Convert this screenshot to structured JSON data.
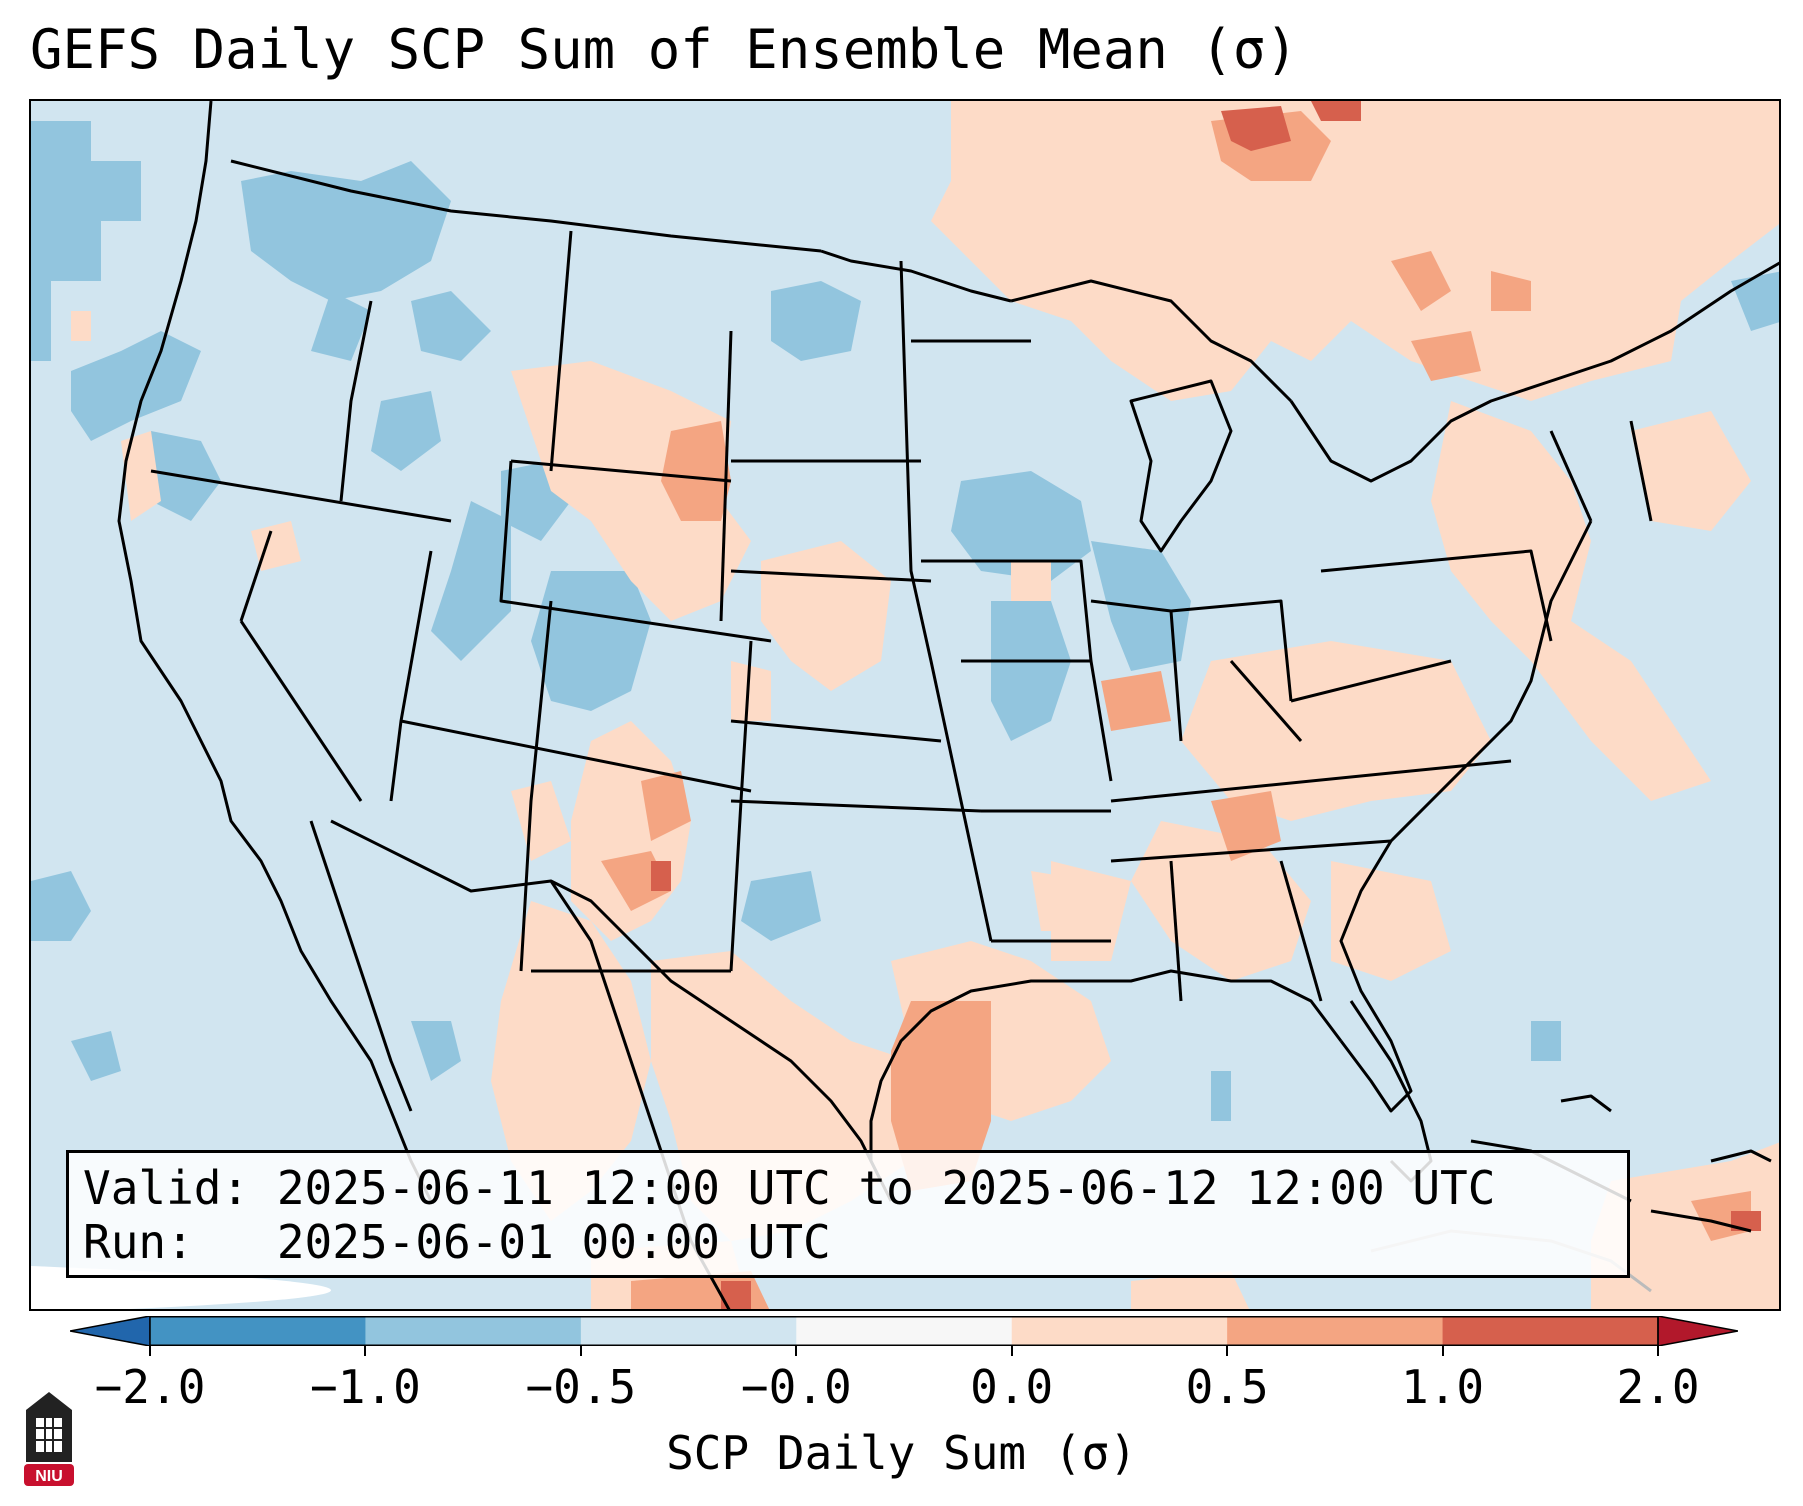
{
  "title": "GEFS Daily SCP Sum of Ensemble Mean (σ)",
  "info": {
    "valid": "Valid: 2025-06-11 12:00 UTC to 2025-06-12 12:00 UTC",
    "run": "Run:   2025-06-01 00:00 UTC"
  },
  "colorbar": {
    "label": "SCP Daily Sum (σ)",
    "ticks": [
      "−2.0",
      "−1.0",
      "−0.5",
      "−0.0",
      "0.0",
      "0.5",
      "1.0",
      "2.0"
    ],
    "bins": [
      {
        "range": "< -2.0",
        "color": "#2166ac"
      },
      {
        "range": "-2.0 to -1.0",
        "color": "#4393c3"
      },
      {
        "range": "-1.0 to -0.5",
        "color": "#92c5de"
      },
      {
        "range": "-0.5 to -0.0",
        "color": "#d1e5f0"
      },
      {
        "range": "-0.0 to 0.0",
        "color": "#f7f7f7"
      },
      {
        "range": "0.0 to 0.5",
        "color": "#fddbc7"
      },
      {
        "range": "0.5 to 1.0",
        "color": "#f4a582"
      },
      {
        "range": "1.0 to 2.0",
        "color": "#d6604d"
      },
      {
        "range": "> 2.0",
        "color": "#b2182b"
      }
    ]
  },
  "logo": {
    "text": "NIU",
    "color": "#c8102e"
  }
}
